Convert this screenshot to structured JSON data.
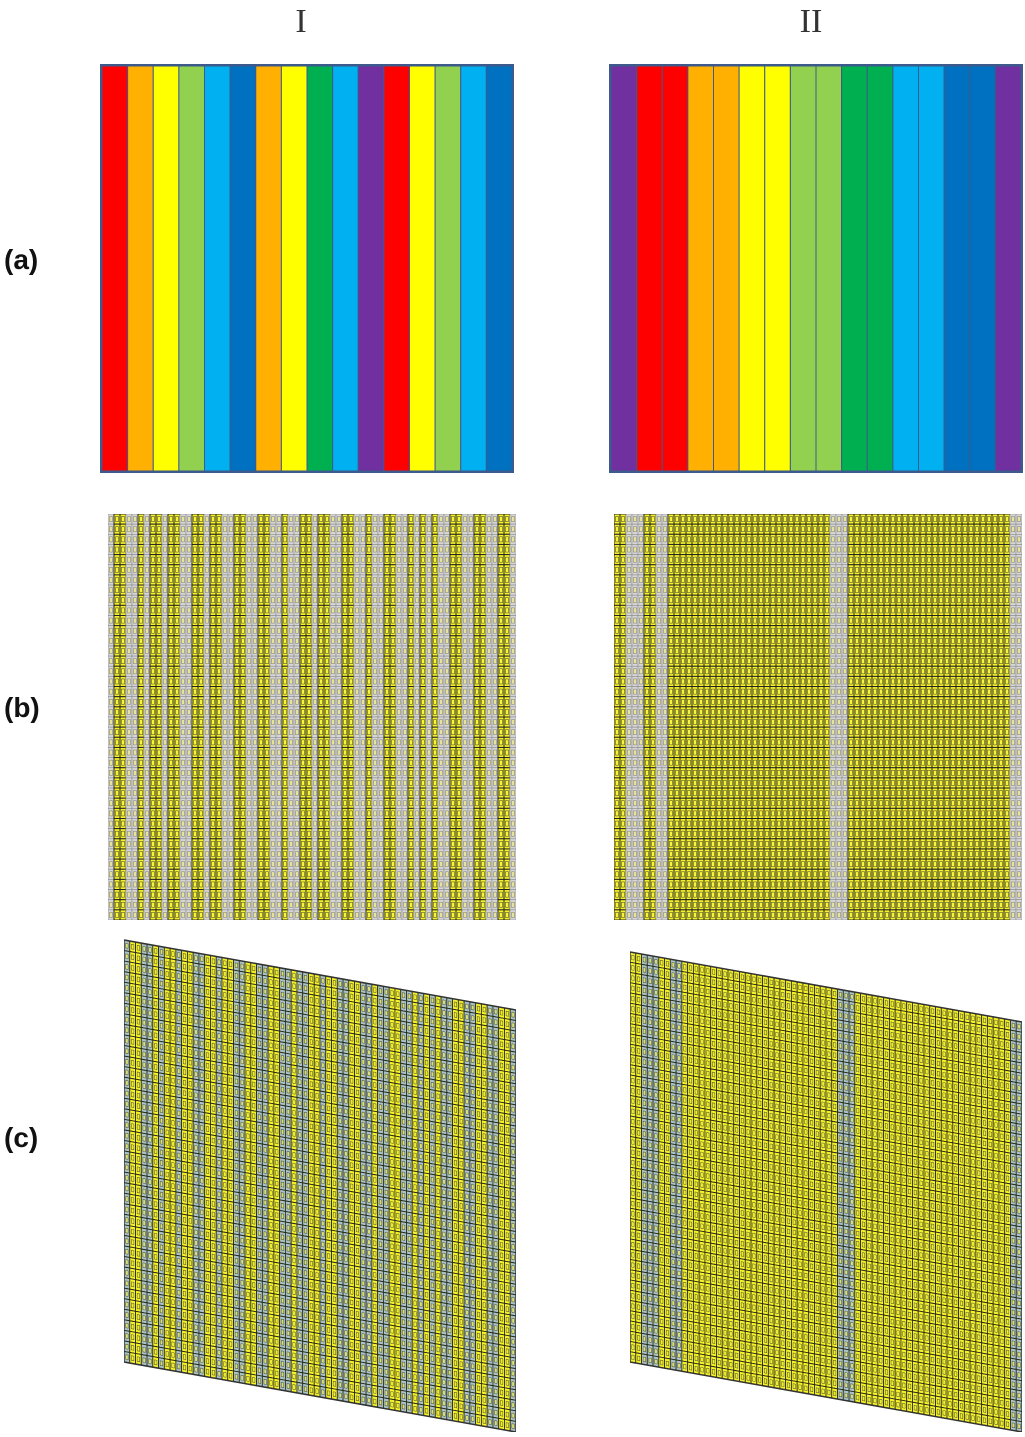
{
  "columns": {
    "col_1": "I",
    "col_2": "II"
  },
  "rows": {
    "row_a": "(a)",
    "row_b": "(b)",
    "row_c": "(c)"
  },
  "palette": {
    "red": "#ff0000",
    "orange": "#ffb000",
    "yellow": "#ffff00",
    "light-green": "#92d050",
    "green": "#00b050",
    "light-blue": "#00b0f0",
    "blue": "#0070c0",
    "purple": "#7030a0",
    "cell-yellow": "#f5f22a",
    "cell-gray": "#d6d6d6",
    "cell-gray-blue": "#a9c4c8",
    "outline": "#3c5a8c"
  },
  "panels": {
    "I": {
      "stripes": [
        "red",
        "orange",
        "yellow",
        "light-green",
        "light-blue",
        "blue",
        "orange",
        "yellow",
        "green",
        "light-blue",
        "purple",
        "red",
        "yellow",
        "light-green",
        "light-blue",
        "blue"
      ],
      "cells": [
        "gray",
        "yellow",
        "yellow",
        "gray",
        "gray",
        "yellow",
        "gray",
        "yellow",
        "yellow",
        "gray",
        "yellow",
        "yellow",
        "gray",
        "gray",
        "yellow",
        "yellow",
        "gray",
        "yellow",
        "yellow",
        "gray",
        "gray",
        "yellow",
        "yellow",
        "gray",
        "gray",
        "yellow",
        "yellow",
        "gray",
        "gray",
        "yellow",
        "gray",
        "gray",
        "yellow",
        "yellow",
        "gray",
        "yellow",
        "yellow",
        "gray",
        "gray",
        "yellow",
        "yellow",
        "gray",
        "gray",
        "yellow",
        "gray",
        "gray",
        "yellow",
        "yellow",
        "gray",
        "gray",
        "yellow",
        "gray",
        "yellow",
        "gray",
        "yellow",
        "gray",
        "gray",
        "yellow",
        "yellow",
        "gray",
        "gray",
        "yellow",
        "yellow",
        "gray",
        "gray",
        "yellow",
        "yellow",
        "gray"
      ]
    },
    "II": {
      "stripes": [
        "purple",
        "red",
        "red",
        "orange",
        "orange",
        "yellow",
        "yellow",
        "light-green",
        "light-green",
        "green",
        "green",
        "light-blue",
        "light-blue",
        "blue",
        "blue",
        "purple"
      ],
      "cells": [
        "yellow",
        "yellow",
        "gray",
        "gray",
        "gray",
        "yellow",
        "yellow",
        "gray",
        "gray",
        "yellow",
        "yellow",
        "yellow",
        "yellow",
        "yellow",
        "yellow",
        "yellow",
        "yellow",
        "yellow",
        "yellow",
        "yellow",
        "yellow",
        "yellow",
        "yellow",
        "yellow",
        "yellow",
        "yellow",
        "yellow",
        "yellow",
        "yellow",
        "yellow",
        "yellow",
        "yellow",
        "yellow",
        "yellow",
        "yellow",
        "yellow",
        "gray",
        "gray",
        "gray",
        "yellow",
        "yellow",
        "yellow",
        "yellow",
        "yellow",
        "yellow",
        "yellow",
        "yellow",
        "yellow",
        "yellow",
        "yellow",
        "yellow",
        "yellow",
        "yellow",
        "yellow",
        "yellow",
        "yellow",
        "yellow",
        "yellow",
        "yellow",
        "yellow",
        "yellow",
        "yellow",
        "yellow",
        "yellow",
        "yellow",
        "yellow",
        "gray",
        "gray"
      ]
    }
  }
}
